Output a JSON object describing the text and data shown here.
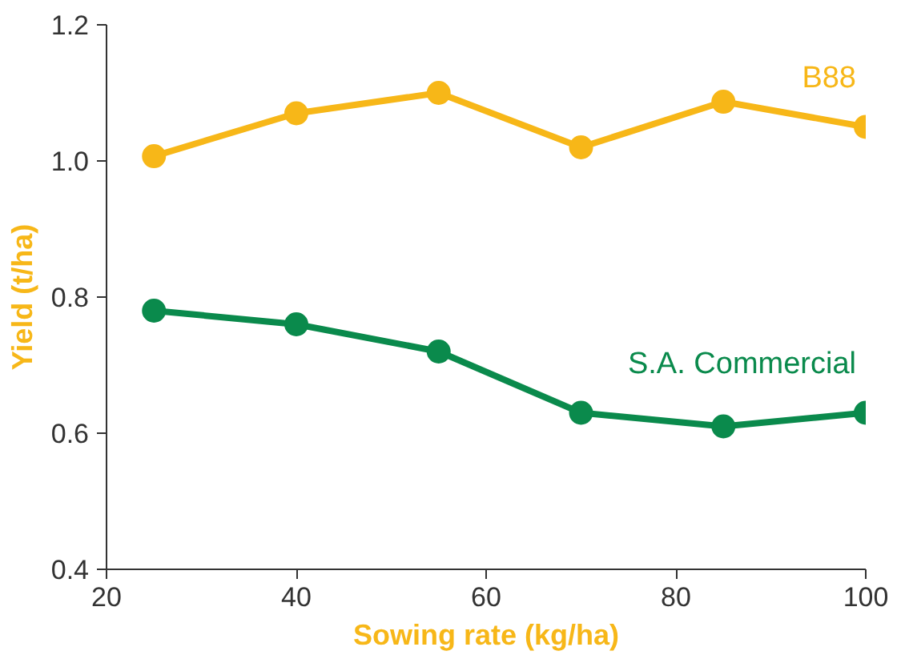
{
  "chart_data": {
    "type": "line",
    "xlabel": "Sowing rate (kg/ha)",
    "ylabel": "Yield (t/ha)",
    "x": [
      25,
      40,
      55,
      70,
      85,
      100
    ],
    "series": [
      {
        "name": "B88",
        "color": "#f7b718",
        "values": [
          1.007,
          1.07,
          1.1,
          1.02,
          1.087,
          1.05
        ]
      },
      {
        "name": "S.A. Commercial",
        "color": "#0a8a4c",
        "values": [
          0.78,
          0.76,
          0.72,
          0.63,
          0.61,
          0.63
        ]
      }
    ],
    "xlim": [
      20,
      100
    ],
    "xticks": [
      20,
      40,
      60,
      80,
      100
    ],
    "ylim": [
      0.4,
      1.2
    ],
    "yticks": [
      {
        "value": 0.4,
        "label": "0.4"
      },
      {
        "value": 0.6,
        "label": "0.6"
      },
      {
        "value": 0.8,
        "label": "0.8"
      },
      {
        "value": 1.0,
        "label": "1.0"
      },
      {
        "value": 1.2,
        "label": "1.2"
      }
    ],
    "grid": false,
    "marker": "circle",
    "line_style": "solid"
  }
}
